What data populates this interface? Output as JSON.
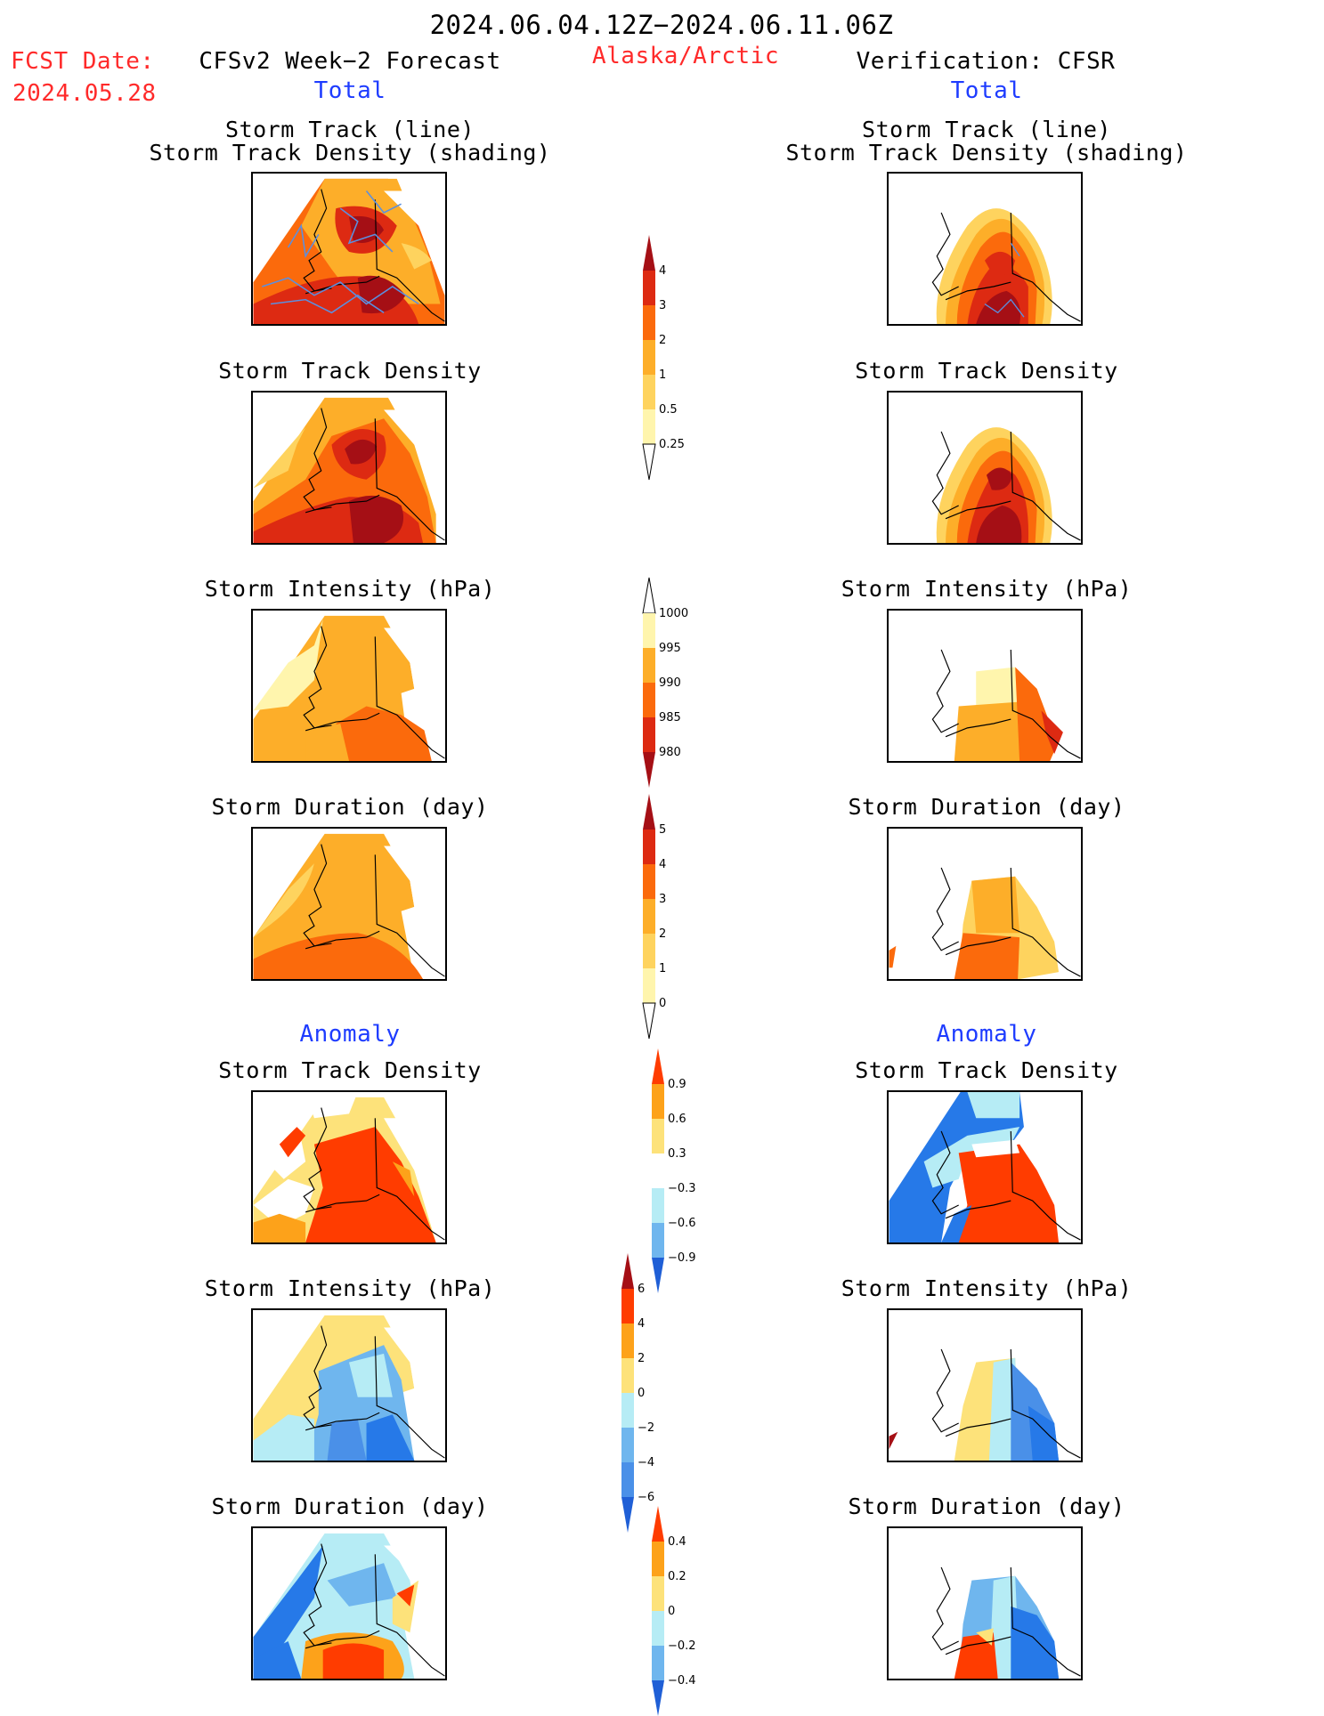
{
  "header": {
    "date_range": "2024.06.04.12Z−2024.06.11.06Z",
    "fcst_label": "FCST Date:",
    "fcst_date": "2024.05.28",
    "left_title": "CFSv2 Week−2 Forecast",
    "left_subtitle": "Total",
    "region": "Alaska/Arctic",
    "right_title": "Verification: CFSR",
    "right_subtitle": "Total"
  },
  "sections": {
    "anomaly_left": "Anomaly",
    "anomaly_right": "Anomaly"
  },
  "panels": [
    {
      "id": "l1",
      "title1": "Storm Track (line)",
      "title2": "Storm Track Density (shading)",
      "colorbar": "density"
    },
    {
      "id": "r1",
      "title1": "Storm Track (line)",
      "title2": "Storm Track Density (shading)",
      "colorbar": "density"
    },
    {
      "id": "l2",
      "title1": "Storm Track Density",
      "colorbar": "density"
    },
    {
      "id": "r2",
      "title1": "Storm Track Density",
      "colorbar": "density"
    },
    {
      "id": "l3",
      "title1": "Storm Intensity (hPa)",
      "colorbar": "intensity"
    },
    {
      "id": "r3",
      "title1": "Storm Intensity (hPa)",
      "colorbar": "intensity"
    },
    {
      "id": "l4",
      "title1": "Storm Duration (day)",
      "colorbar": "duration"
    },
    {
      "id": "r4",
      "title1": "Storm Duration (day)",
      "colorbar": "duration"
    },
    {
      "id": "l5",
      "title1": "Storm Track Density",
      "colorbar": "density_anom"
    },
    {
      "id": "r5",
      "title1": "Storm Track Density",
      "colorbar": "density_anom"
    },
    {
      "id": "l6",
      "title1": "Storm Intensity (hPa)",
      "colorbar": "intensity_anom"
    },
    {
      "id": "r6",
      "title1": "Storm Intensity (hPa)",
      "colorbar": "intensity_anom"
    },
    {
      "id": "l7",
      "title1": "Storm Duration (day)",
      "colorbar": "duration_anom"
    },
    {
      "id": "r7",
      "title1": "Storm Duration (day)",
      "colorbar": "duration_anom"
    }
  ],
  "colorbars": {
    "density": {
      "levels": [
        "4",
        "3",
        "2",
        "1",
        "0.5",
        "0.25"
      ],
      "colors": [
        "#a50f15",
        "#dd2a12",
        "#fb6a0c",
        "#fdae29",
        "#fed35e",
        "#fff5ad",
        "#ffffff"
      ],
      "top_arrow": "#a50f15",
      "bottom_arrow": "#ffffff"
    },
    "intensity": {
      "levels": [
        "1000",
        "995",
        "990",
        "985",
        "980"
      ],
      "colors": [
        "#ffffff",
        "#fff5ad",
        "#fdae29",
        "#fb6a0c",
        "#dd2a12",
        "#a50f15"
      ],
      "top_arrow": "#ffffff",
      "bottom_arrow": "#a50f15"
    },
    "duration": {
      "levels": [
        "5",
        "4",
        "3",
        "2",
        "1",
        "0"
      ],
      "colors": [
        "#a50f15",
        "#dd2a12",
        "#fb6a0c",
        "#fdae29",
        "#fed35e",
        "#fff5ad",
        "#ffffff"
      ],
      "top_arrow": "#a50f15",
      "bottom_arrow": "#ffffff"
    },
    "density_anom": {
      "levels": [
        "0.9",
        "0.6",
        "0.3",
        "−0.3",
        "−0.6",
        "−0.9"
      ],
      "colors": [
        "#ff3c00",
        "#fda21a",
        "#fde27a",
        "#ffffff",
        "#b6ecf5",
        "#6fb6ee",
        "#2679e8"
      ],
      "top_arrow": "#ff3c00",
      "bottom_arrow": "#1f5fd6"
    },
    "intensity_anom": {
      "levels": [
        "6",
        "4",
        "2",
        "0",
        "−2",
        "−4",
        "−6"
      ],
      "colors": [
        "#a50f15",
        "#ff3c00",
        "#fda21a",
        "#fde27a",
        "#b6ecf5",
        "#6fb6ee",
        "#4a90e8",
        "#2679e8"
      ],
      "top_arrow": "#a50f15",
      "bottom_arrow": "#1f5fd6"
    },
    "duration_anom": {
      "levels": [
        "0.4",
        "0.2",
        "0",
        "−0.2",
        "−0.4"
      ],
      "colors": [
        "#ff3c00",
        "#fda21a",
        "#fde27a",
        "#b6ecf5",
        "#6fb6ee",
        "#2679e8"
      ],
      "top_arrow": "#ff3c00",
      "bottom_arrow": "#1f5fd6"
    }
  }
}
